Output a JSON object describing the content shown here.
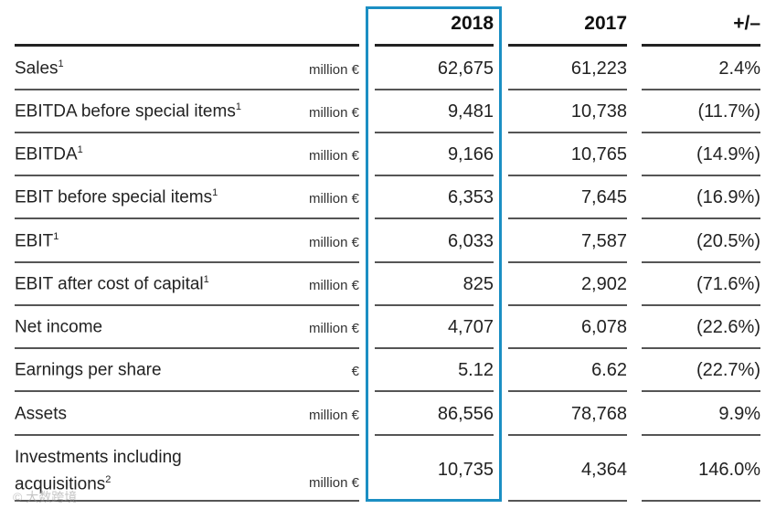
{
  "header": {
    "col_2018": "2018",
    "col_2017": "2017",
    "col_change": "+/–"
  },
  "rows": [
    {
      "label": "Sales",
      "sup": "1",
      "unit": "million €",
      "v2018": "62,675",
      "v2017": "61,223",
      "change": "2.4%"
    },
    {
      "label": "EBITDA before special items",
      "sup": "1",
      "unit": "million €",
      "v2018": "9,481",
      "v2017": "10,738",
      "change": "(11.7%)"
    },
    {
      "label": "EBITDA",
      "sup": "1",
      "unit": "million €",
      "v2018": "9,166",
      "v2017": "10,765",
      "change": "(14.9%)"
    },
    {
      "label": "EBIT before special items",
      "sup": "1",
      "unit": "million €",
      "v2018": "6,353",
      "v2017": "7,645",
      "change": "(16.9%)"
    },
    {
      "label": "EBIT",
      "sup": "1",
      "unit": "million €",
      "v2018": "6,033",
      "v2017": "7,587",
      "change": "(20.5%)"
    },
    {
      "label": "EBIT after cost of capital",
      "sup": "1",
      "unit": "million €",
      "v2018": "825",
      "v2017": "2,902",
      "change": "(71.6%)"
    },
    {
      "label": "Net income",
      "sup": "",
      "unit": "million €",
      "v2018": "4,707",
      "v2017": "6,078",
      "change": "(22.6%)"
    },
    {
      "label": "Earnings per share",
      "sup": "",
      "unit": "€",
      "v2018": "5.12",
      "v2017": "6.62",
      "change": "(22.7%)"
    },
    {
      "label": "Assets",
      "sup": "",
      "unit": "million €",
      "v2018": "86,556",
      "v2017": "78,768",
      "change": "9.9%"
    },
    {
      "label": "Investments including acquisitions",
      "sup": "2",
      "unit": "million €",
      "v2018": "10,735",
      "v2017": "4,364",
      "change": "146.0%"
    }
  ],
  "highlight_color": "#1b8fc3",
  "watermark": "大数跨境"
}
